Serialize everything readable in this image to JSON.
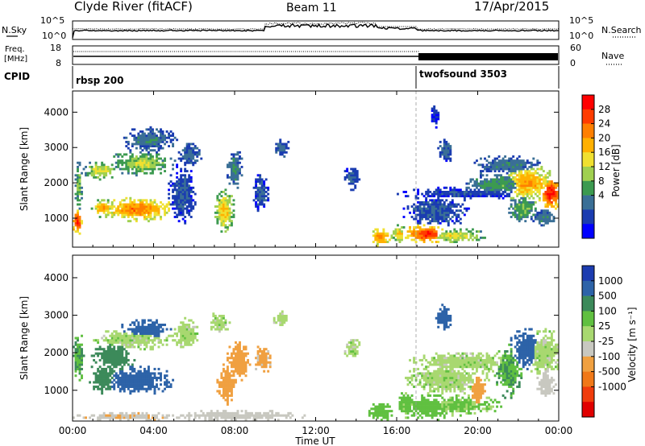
{
  "header": {
    "title_left": "Clyde River (fitACF)",
    "title_center": "Beam 11",
    "title_right": "17/Apr/2015"
  },
  "noise_panel": {
    "left_label": "N.Sky",
    "right_label": "N.Search",
    "left_ticks": [
      "10^5",
      "10^0"
    ],
    "right_ticks": [
      "10^5",
      "10^0"
    ]
  },
  "freq_panel": {
    "left_label_line1": "Freq.",
    "left_label_line2": "[MHz]",
    "left_ticks": [
      "18",
      "8"
    ],
    "right_label": "Nave",
    "right_ticks": [
      "60",
      "0"
    ]
  },
  "cpid_panel": {
    "label": "CPID",
    "segments": [
      {
        "name": "rbsp 200",
        "start_hour": 0,
        "end_hour": 17
      },
      {
        "name": "twofsound 3503",
        "start_hour": 17,
        "end_hour": 24
      }
    ]
  },
  "x_axis": {
    "label": "Time UT",
    "ticks": [
      "00:00",
      "04:00",
      "08:00",
      "12:00",
      "16:00",
      "20:00",
      "00:00"
    ],
    "range_hours": [
      0,
      24
    ]
  },
  "power_panel": {
    "ylabel": "Slant Range [km]",
    "yticks": [
      "1000",
      "2000",
      "3000",
      "4000"
    ],
    "cbar_label": "Power [dB]",
    "cbar_ticks": [
      "28",
      "24",
      "20",
      "16",
      "12",
      "8",
      "4"
    ],
    "cbar_colors": [
      "#ff0000",
      "#ff3c00",
      "#ff7f00",
      "#ffb000",
      "#f0e030",
      "#a0d050",
      "#3c9a50",
      "#3a6f96",
      "#1a3cb0",
      "#0000ff"
    ]
  },
  "velocity_panel": {
    "ylabel": "Slant Range [km]",
    "yticks": [
      "1000",
      "2000",
      "3000",
      "4000"
    ],
    "cbar_label": "Velocity [m s⁻¹]",
    "cbar_ticks": [
      "1000",
      "500",
      "100",
      "25",
      "-25",
      "-100",
      "-500",
      "-1000"
    ],
    "cbar_colors": [
      "#1c3cb0",
      "#2d63a8",
      "#3c8a5a",
      "#60c040",
      "#a8d870",
      "#c8c8c0",
      "#f0a040",
      "#f07818",
      "#f03c0c",
      "#e00000"
    ]
  },
  "chart_data": {
    "type": "heatmap",
    "x_range_hours": [
      0,
      24
    ],
    "y_range_km": [
      180,
      4600
    ],
    "power_db_range": [
      0,
      30
    ],
    "velocity_range": [
      -1200,
      1200
    ],
    "power_blobs": [
      {
        "t": 0.25,
        "r": 900,
        "dt": 0.2,
        "dr": 250,
        "p": 26
      },
      {
        "t": 0.3,
        "r": 1900,
        "dt": 0.15,
        "dr": 500,
        "p": 12
      },
      {
        "t": 1.4,
        "r": 2350,
        "dt": 0.6,
        "dr": 200,
        "p": 16
      },
      {
        "t": 1.5,
        "r": 1300,
        "dt": 0.4,
        "dr": 200,
        "p": 20
      },
      {
        "t": 3.2,
        "r": 1250,
        "dt": 1.4,
        "dr": 250,
        "p": 22
      },
      {
        "t": 3.4,
        "r": 2550,
        "dt": 1.2,
        "dr": 250,
        "p": 14
      },
      {
        "t": 3.8,
        "r": 3200,
        "dt": 1.0,
        "dr": 280,
        "p": 8
      },
      {
        "t": 5.4,
        "r": 1700,
        "dt": 0.5,
        "dr": 600,
        "p": 6
      },
      {
        "t": 5.8,
        "r": 2800,
        "dt": 0.4,
        "dr": 300,
        "p": 7
      },
      {
        "t": 7.5,
        "r": 1200,
        "dt": 0.35,
        "dr": 450,
        "p": 18
      },
      {
        "t": 8.0,
        "r": 2400,
        "dt": 0.3,
        "dr": 400,
        "p": 9
      },
      {
        "t": 9.3,
        "r": 1700,
        "dt": 0.3,
        "dr": 400,
        "p": 6
      },
      {
        "t": 10.3,
        "r": 3000,
        "dt": 0.3,
        "dr": 200,
        "p": 7
      },
      {
        "t": 13.8,
        "r": 2150,
        "dt": 0.3,
        "dr": 250,
        "p": 6
      },
      {
        "t": 15.2,
        "r": 450,
        "dt": 0.4,
        "dr": 180,
        "p": 22
      },
      {
        "t": 16.1,
        "r": 550,
        "dt": 0.25,
        "dr": 200,
        "p": 18
      },
      {
        "t": 17.5,
        "r": 550,
        "dt": 0.8,
        "dr": 200,
        "p": 26
      },
      {
        "t": 18.8,
        "r": 500,
        "dt": 1.2,
        "dr": 150,
        "p": 16
      },
      {
        "t": 18.0,
        "r": 1200,
        "dt": 1.2,
        "dr": 350,
        "p": 6
      },
      {
        "t": 19.5,
        "r": 1700,
        "dt": 2.5,
        "dr": 120,
        "p": 5
      },
      {
        "t": 21.0,
        "r": 1950,
        "dt": 1.4,
        "dr": 250,
        "p": 10
      },
      {
        "t": 22.5,
        "r": 2000,
        "dt": 1.0,
        "dr": 400,
        "p": 20
      },
      {
        "t": 23.6,
        "r": 1700,
        "dt": 0.45,
        "dr": 350,
        "p": 27
      },
      {
        "t": 22.2,
        "r": 1250,
        "dt": 0.5,
        "dr": 300,
        "p": 12
      },
      {
        "t": 23.3,
        "r": 1000,
        "dt": 0.4,
        "dr": 200,
        "p": 9
      },
      {
        "t": 21.5,
        "r": 2500,
        "dt": 1.2,
        "dr": 200,
        "p": 8
      },
      {
        "t": 18.4,
        "r": 2900,
        "dt": 0.3,
        "dr": 250,
        "p": 7
      },
      {
        "t": 17.9,
        "r": 3900,
        "dt": 0.15,
        "dr": 250,
        "p": 4
      }
    ],
    "velocity_blobs": [
      {
        "t": 0.3,
        "r": 1900,
        "dt": 0.2,
        "dr": 500,
        "v": 100
      },
      {
        "t": 1.5,
        "r": 1350,
        "dt": 0.5,
        "dr": 300,
        "v": 150
      },
      {
        "t": 3.2,
        "r": 1250,
        "dt": 1.3,
        "dr": 280,
        "v": 900
      },
      {
        "t": 2.0,
        "r": 1900,
        "dt": 0.8,
        "dr": 300,
        "v": 200
      },
      {
        "t": 3.0,
        "r": 2350,
        "dt": 1.4,
        "dr": 200,
        "v": 0
      },
      {
        "t": 3.6,
        "r": 2600,
        "dt": 1.0,
        "dr": 200,
        "v": 600
      },
      {
        "t": 5.6,
        "r": 2500,
        "dt": 0.5,
        "dr": 300,
        "v": 0
      },
      {
        "t": 7.6,
        "r": 1150,
        "dt": 0.35,
        "dr": 400,
        "v": -300
      },
      {
        "t": 8.2,
        "r": 1800,
        "dt": 0.4,
        "dr": 400,
        "v": -150
      },
      {
        "t": 7.2,
        "r": 2800,
        "dt": 0.4,
        "dr": 200,
        "v": 0
      },
      {
        "t": 9.4,
        "r": 1800,
        "dt": 0.3,
        "dr": 300,
        "v": -120
      },
      {
        "t": 10.3,
        "r": 2900,
        "dt": 0.3,
        "dr": 150,
        "v": 0
      },
      {
        "t": 13.8,
        "r": 2100,
        "dt": 0.3,
        "dr": 200,
        "v": 0
      },
      {
        "t": 15.2,
        "r": 420,
        "dt": 0.45,
        "dr": 180,
        "v": 60
      },
      {
        "t": 16.5,
        "r": 600,
        "dt": 0.4,
        "dr": 250,
        "v": 50
      },
      {
        "t": 17.6,
        "r": 550,
        "dt": 1.0,
        "dr": 250,
        "v": 60
      },
      {
        "t": 19.0,
        "r": 600,
        "dt": 1.5,
        "dr": 200,
        "v": 40
      },
      {
        "t": 18.5,
        "r": 1300,
        "dt": 1.5,
        "dr": 300,
        "v": 0
      },
      {
        "t": 19.5,
        "r": 1750,
        "dt": 2.0,
        "dr": 200,
        "v": 0
      },
      {
        "t": 20.0,
        "r": 950,
        "dt": 0.3,
        "dr": 400,
        "v": -200
      },
      {
        "t": 21.5,
        "r": 1500,
        "dt": 0.5,
        "dr": 500,
        "v": 100
      },
      {
        "t": 22.4,
        "r": 2100,
        "dt": 0.6,
        "dr": 400,
        "v": 800
      },
      {
        "t": 23.3,
        "r": 2000,
        "dt": 0.7,
        "dr": 450,
        "v": 0
      },
      {
        "t": 23.4,
        "r": 1200,
        "dt": 0.35,
        "dr": 300,
        "v": -60
      },
      {
        "t": 18.3,
        "r": 2950,
        "dt": 0.3,
        "dr": 250,
        "v": 800
      },
      {
        "t": 2.8,
        "r": 300,
        "dt": 2.0,
        "dr": 80,
        "v": -80
      },
      {
        "t": 8.0,
        "r": 320,
        "dt": 2.5,
        "dr": 100,
        "v": -70
      }
    ]
  }
}
